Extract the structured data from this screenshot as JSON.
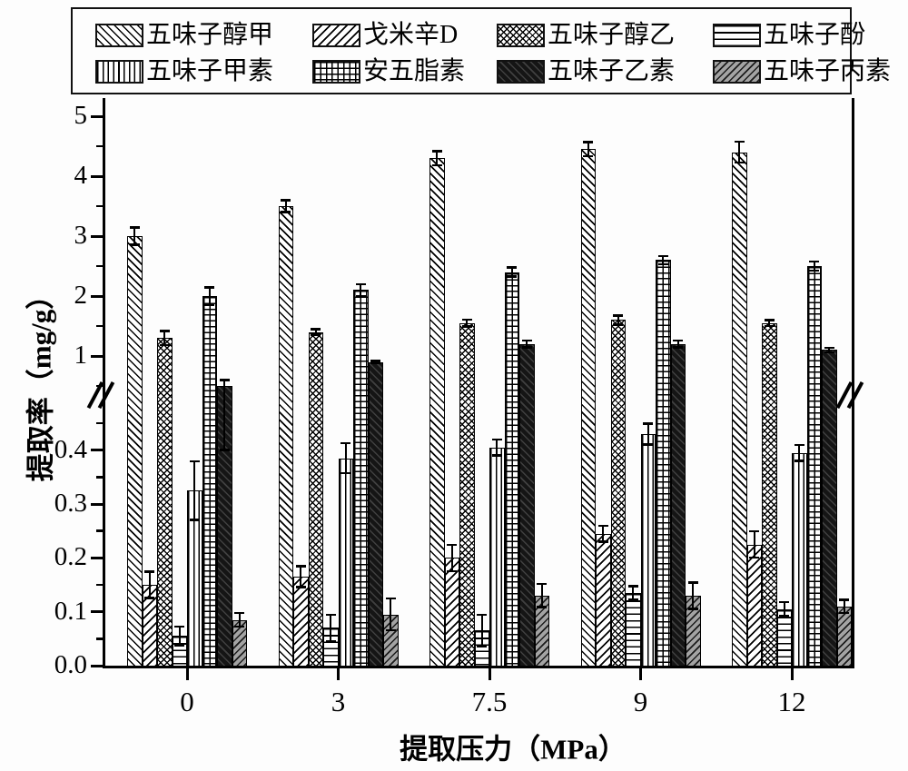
{
  "y_axis": {
    "upper_tick_labels": [
      "5",
      "4",
      "3",
      "2",
      "1"
    ],
    "lower_tick_labels": [
      "0.4",
      "0.3",
      "0.2",
      "0.1",
      "0.0"
    ]
  },
  "chart_data": {
    "type": "bar",
    "title": "",
    "xlabel": "提取压力（MPa）",
    "ylabel": "提取率（mg/g）",
    "categories": [
      "0",
      "3",
      "7.5",
      "9",
      "12"
    ],
    "broken_axis": {
      "lower_range": [
        0,
        0.45
      ],
      "upper_range": [
        0.5,
        5
      ],
      "grid": false,
      "error_bars": true,
      "legend_position": "top"
    },
    "series": [
      {
        "name": "五味子醇甲",
        "pattern": "diagonal-up",
        "values": [
          3.0,
          3.5,
          4.3,
          4.45,
          4.4
        ],
        "errors": [
          0.15,
          0.1,
          0.12,
          0.12,
          0.18
        ]
      },
      {
        "name": "戈米辛D",
        "pattern": "diagonal-down",
        "values": [
          0.15,
          0.165,
          0.2,
          0.245,
          0.225
        ],
        "errors": [
          0.025,
          0.02,
          0.025,
          0.015,
          0.025
        ]
      },
      {
        "name": "五味子醇乙",
        "pattern": "crosshatch",
        "values": [
          1.3,
          1.4,
          1.55,
          1.6,
          1.55
        ],
        "errors": [
          0.12,
          0.05,
          0.06,
          0.08,
          0.05
        ]
      },
      {
        "name": "五味子酚",
        "pattern": "horizontal-lines",
        "values": [
          0.055,
          0.07,
          0.065,
          0.135,
          0.105
        ],
        "errors": [
          0.018,
          0.025,
          0.03,
          0.013,
          0.013
        ]
      },
      {
        "name": "五味子甲素",
        "pattern": "vertical-lines",
        "values": [
          0.325,
          0.385,
          0.405,
          0.43,
          0.395
        ],
        "errors": [
          0.055,
          0.028,
          0.015,
          0.02,
          0.015
        ]
      },
      {
        "name": "安五脂素",
        "pattern": "grid-lines",
        "values": [
          2.0,
          2.1,
          2.4,
          2.6,
          2.5
        ],
        "errors": [
          0.15,
          0.1,
          0.08,
          0.07,
          0.08
        ]
      },
      {
        "name": "五味子乙素",
        "pattern": "dark-diagonal",
        "values": [
          0.5,
          0.9,
          1.2,
          1.2,
          1.1
        ],
        "errors": [
          0.1,
          0.02,
          0.06,
          0.06,
          0.04
        ]
      },
      {
        "name": "五味子丙素",
        "pattern": "gray-diagonal",
        "values": [
          0.085,
          0.095,
          0.13,
          0.13,
          0.11
        ],
        "errors": [
          0.013,
          0.03,
          0.022,
          0.025,
          0.013
        ]
      }
    ]
  }
}
